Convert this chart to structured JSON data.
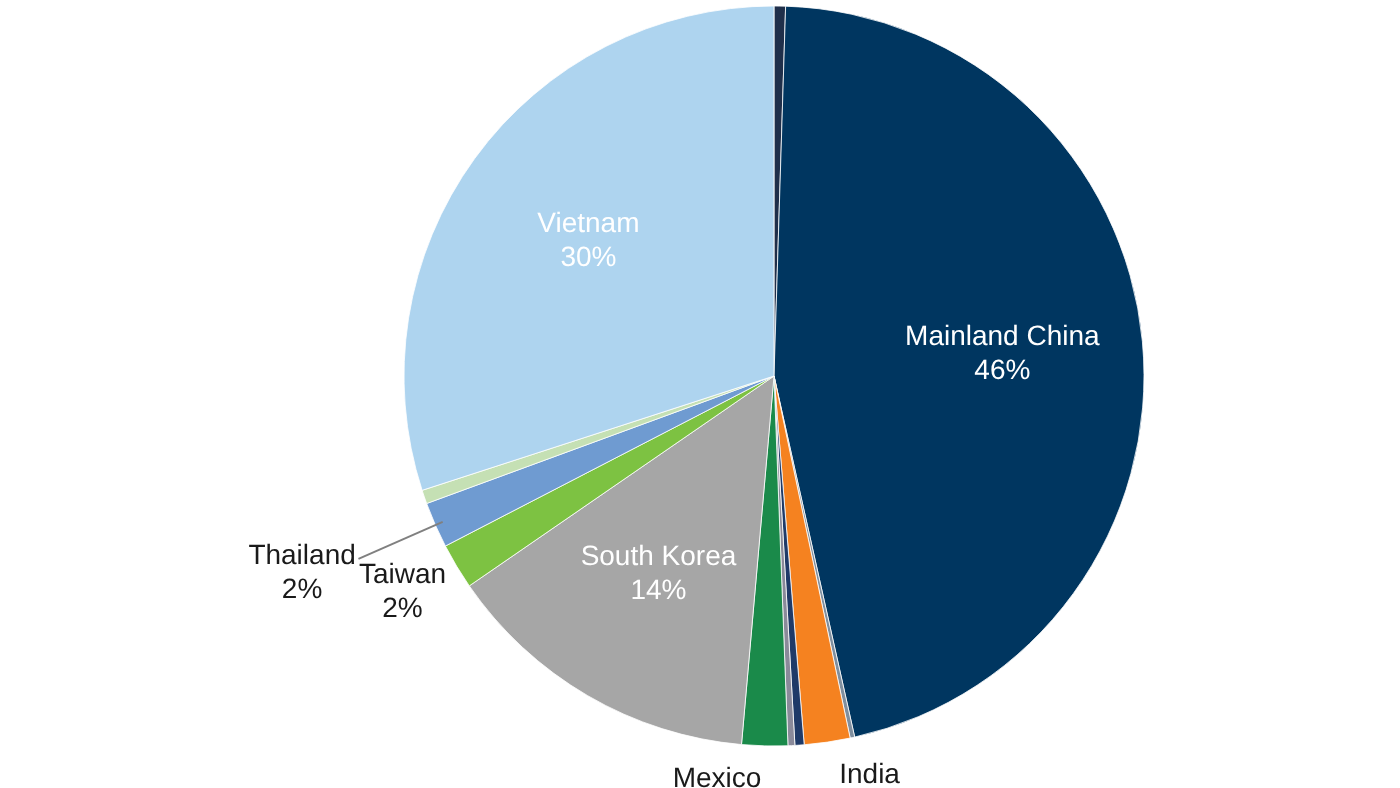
{
  "chart_data": {
    "type": "pie",
    "categories": [
      null,
      "Mainland China",
      null,
      "India",
      null,
      null,
      "Mexico",
      "South Korea",
      "Taiwan",
      "Thailand",
      null,
      "Vietnam"
    ],
    "values": [
      0.5,
      46,
      0.2,
      2,
      0.4,
      0.3,
      2,
      14,
      2,
      2,
      0.6,
      30
    ],
    "value_labels": [
      null,
      "46%",
      null,
      null,
      null,
      null,
      null,
      "14%",
      "2%",
      "2%",
      null,
      "30%"
    ],
    "colors": [
      "#1f2f4a",
      "#003660",
      "#7f8f9f",
      "#f58220",
      "#1f3a68",
      "#8a8a9a",
      "#1a8a4a",
      "#a6a6a6",
      "#7dc242",
      "#6f9bd1",
      "#c5e0b4",
      "#aed4ef"
    ]
  }
}
